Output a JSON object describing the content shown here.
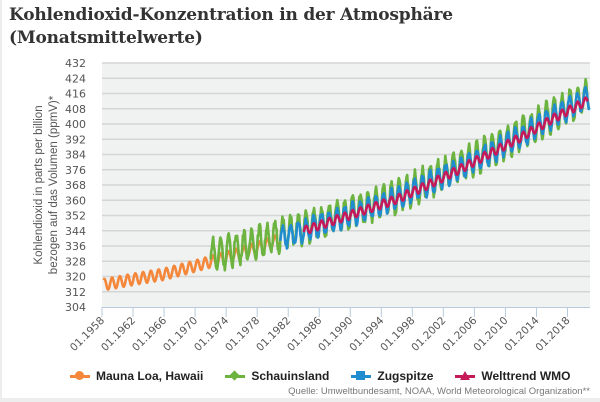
{
  "chart_data": {
    "type": "line",
    "title": "Kohlendioxid-Konzentration in der Atmosphäre (Monatsmittelwerte)",
    "title_line1": "Kohlendioxid-Konzentration in der Atmosphäre",
    "title_line2": "(Monatsmittelwerte)",
    "xlabel": "",
    "ylabel_line1": "Kohlendioxid in parts per billion",
    "ylabel_line2": "bezogen auf das Volumen (ppmV)*",
    "ylim": [
      304,
      432
    ],
    "yticks": [
      304,
      312,
      320,
      328,
      336,
      344,
      352,
      360,
      368,
      376,
      384,
      392,
      400,
      408,
      416,
      424,
      432
    ],
    "xlim": [
      1958.0,
      2020.9
    ],
    "xticks": [
      "01.1958",
      "01.1962",
      "01.1966",
      "01.1970",
      "01.1974",
      "01.1978",
      "01.1982",
      "01.1986",
      "01.1990",
      "01.1994",
      "01.1998",
      "01.2002",
      "01.2006",
      "01.2010",
      "01.2014",
      "01.2018"
    ],
    "grid": true,
    "legend_position": "bottom",
    "series": [
      {
        "name": "Mauna Loa, Hawaii",
        "color": "#f5873a",
        "marker": "circle",
        "start": 1958.2,
        "end": 1981.0,
        "trend_points": [
          [
            1958.2,
            315.7
          ],
          [
            1962,
            318.5
          ],
          [
            1966,
            321.2
          ],
          [
            1970,
            325.5
          ],
          [
            1974,
            330.0
          ],
          [
            1978,
            335.0
          ],
          [
            1981,
            339.5
          ]
        ],
        "seasonal_amplitude": 3.0
      },
      {
        "name": "Schauinsland",
        "color": "#6cb33f",
        "marker": "diamond",
        "start": 1972.0,
        "end": 2020.8,
        "trend_points": [
          [
            1972,
            331.0
          ],
          [
            1976,
            335.5
          ],
          [
            1980,
            340.5
          ],
          [
            1984,
            345.5
          ],
          [
            1988,
            351.0
          ],
          [
            1992,
            356.5
          ],
          [
            1996,
            362.0
          ],
          [
            2000,
            369.5
          ],
          [
            2004,
            377.5
          ],
          [
            2008,
            386.0
          ],
          [
            2012,
            394.5
          ],
          [
            2016,
            404.5
          ],
          [
            2020,
            413.5
          ]
        ],
        "seasonal_amplitude": 8.0
      },
      {
        "name": "Zugspitze",
        "color": "#1f8dd0",
        "marker": "square",
        "start": 1981.0,
        "end": 2020.9,
        "trend_points": [
          [
            1981,
            340.5
          ],
          [
            1984,
            344.0
          ],
          [
            1988,
            350.0
          ],
          [
            1992,
            355.0
          ],
          [
            1996,
            361.0
          ],
          [
            2000,
            368.5
          ],
          [
            2004,
            376.5
          ],
          [
            2008,
            385.0
          ],
          [
            2012,
            393.5
          ],
          [
            2016,
            403.5
          ],
          [
            2020,
            412.5
          ]
        ],
        "seasonal_amplitude": 5.5
      },
      {
        "name": "Welttrend WMO",
        "color": "#c6195a",
        "marker": "triangle",
        "start": 1984.0,
        "end": 2020.6,
        "trend_points": [
          [
            1984,
            344.0
          ],
          [
            1988,
            349.5
          ],
          [
            1992,
            355.0
          ],
          [
            1996,
            360.5
          ],
          [
            2000,
            368.0
          ],
          [
            2004,
            376.0
          ],
          [
            2008,
            384.5
          ],
          [
            2012,
            393.0
          ],
          [
            2016,
            402.5
          ],
          [
            2020,
            411.0
          ]
        ],
        "seasonal_amplitude": 2.2
      }
    ]
  },
  "source": "Quelle: Umweltbundesamt, NOAA, World Meteorological Organization**"
}
